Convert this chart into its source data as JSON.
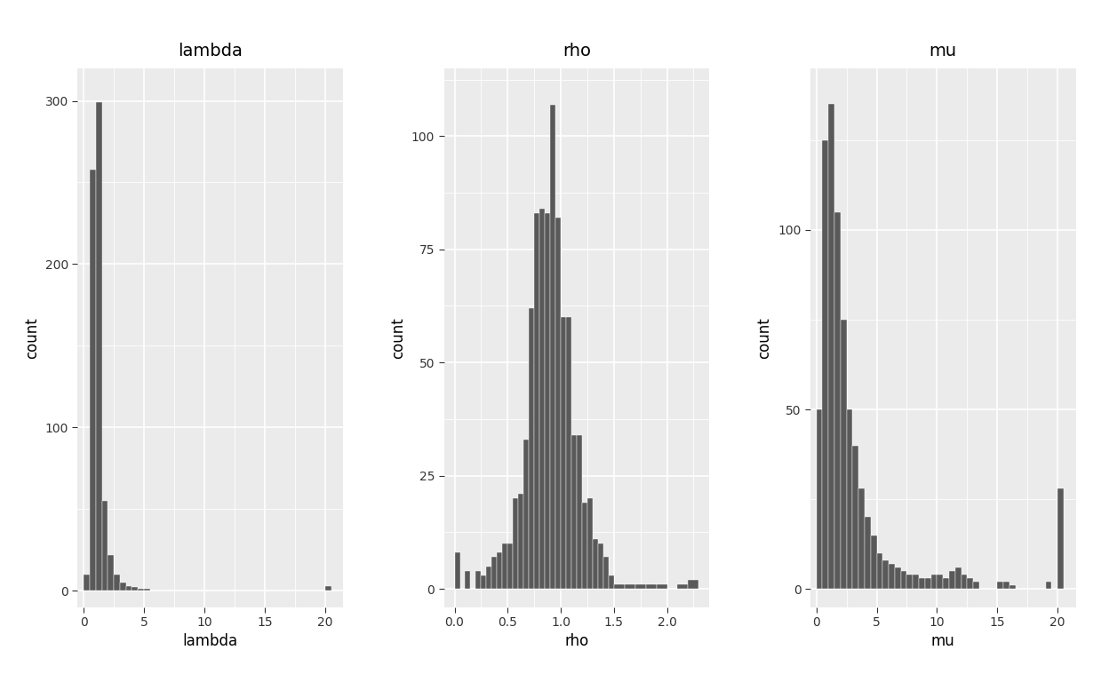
{
  "titles": [
    "lambda",
    "rho",
    "mu"
  ],
  "xlabels": [
    "lambda",
    "rho",
    "mu"
  ],
  "ylabel": "count",
  "bar_color": "#595959",
  "bg_color": "#EBEBEB",
  "fig_bg_color": "#FFFFFF",
  "grid_color": "#FFFFFF",
  "title_fontsize": 14,
  "label_fontsize": 12,
  "tick_fontsize": 10,
  "lambda_bins": [
    0.0,
    0.5,
    1.0,
    1.5,
    2.0,
    2.5,
    3.0,
    3.5,
    4.0,
    4.5,
    5.0,
    5.5,
    6.0,
    6.5,
    7.0,
    7.5,
    8.0,
    8.5,
    9.0,
    9.5,
    10.0,
    10.5,
    11.0,
    11.5,
    12.0,
    12.5,
    13.0,
    13.5,
    14.0,
    14.5,
    15.0,
    15.5,
    16.0,
    16.5,
    17.0,
    17.5,
    18.0,
    18.5,
    19.0,
    19.5,
    20.0,
    20.5
  ],
  "lambda_counts": [
    10,
    258,
    299,
    55,
    22,
    10,
    5,
    3,
    2,
    1,
    1,
    0,
    0,
    0,
    0,
    0,
    0,
    0,
    0,
    0,
    0,
    0,
    0,
    0,
    0,
    0,
    0,
    0,
    0,
    0,
    0,
    0,
    0,
    0,
    0,
    0,
    0,
    0,
    0,
    0,
    3,
    0
  ],
  "lambda_xlim": [
    -0.5,
    21.5
  ],
  "lambda_ylim": [
    -10,
    320
  ],
  "lambda_xticks": [
    0,
    5,
    10,
    15,
    20
  ],
  "lambda_yticks": [
    0,
    100,
    200,
    300
  ],
  "rho_bins": [
    0.0,
    0.05,
    0.1,
    0.15,
    0.2,
    0.25,
    0.3,
    0.35,
    0.4,
    0.45,
    0.5,
    0.55,
    0.6,
    0.65,
    0.7,
    0.75,
    0.8,
    0.85,
    0.9,
    0.95,
    1.0,
    1.05,
    1.1,
    1.15,
    1.2,
    1.25,
    1.3,
    1.35,
    1.4,
    1.45,
    1.5,
    1.6,
    1.7,
    1.8,
    1.9,
    2.0,
    2.1,
    2.2,
    2.3
  ],
  "rho_counts": [
    8,
    0,
    4,
    0,
    4,
    3,
    5,
    7,
    8,
    10,
    10,
    20,
    21,
    33,
    62,
    83,
    84,
    83,
    107,
    82,
    60,
    60,
    34,
    34,
    19,
    20,
    11,
    10,
    7,
    3,
    1,
    1,
    1,
    1,
    1,
    0,
    1,
    2,
    0
  ],
  "rho_xlim": [
    -0.1,
    2.4
  ],
  "rho_ylim": [
    -4,
    115
  ],
  "rho_xticks": [
    0.0,
    0.5,
    1.0,
    1.5,
    2.0
  ],
  "rho_yticks": [
    0,
    25,
    50,
    75,
    100
  ],
  "mu_bins": [
    0.0,
    0.5,
    1.0,
    1.5,
    2.0,
    2.5,
    3.0,
    3.5,
    4.0,
    4.5,
    5.0,
    5.5,
    6.0,
    6.5,
    7.0,
    7.5,
    8.0,
    8.5,
    9.0,
    9.5,
    10.0,
    10.5,
    11.0,
    11.5,
    12.0,
    12.5,
    13.0,
    13.5,
    14.0,
    14.5,
    15.0,
    15.5,
    16.0,
    16.5,
    17.0,
    17.5,
    18.0,
    18.5,
    19.0,
    19.5,
    20.0,
    20.5
  ],
  "mu_counts": [
    50,
    125,
    135,
    105,
    75,
    50,
    40,
    28,
    20,
    15,
    10,
    8,
    7,
    6,
    5,
    4,
    4,
    3,
    3,
    4,
    4,
    3,
    5,
    6,
    4,
    3,
    2,
    0,
    0,
    0,
    2,
    2,
    1,
    0,
    0,
    0,
    0,
    0,
    2,
    0,
    28,
    0
  ],
  "mu_xlim": [
    -0.5,
    21.5
  ],
  "mu_ylim": [
    -5,
    145
  ],
  "mu_xticks": [
    0,
    5,
    10,
    15,
    20
  ],
  "mu_yticks": [
    0,
    50,
    100
  ]
}
